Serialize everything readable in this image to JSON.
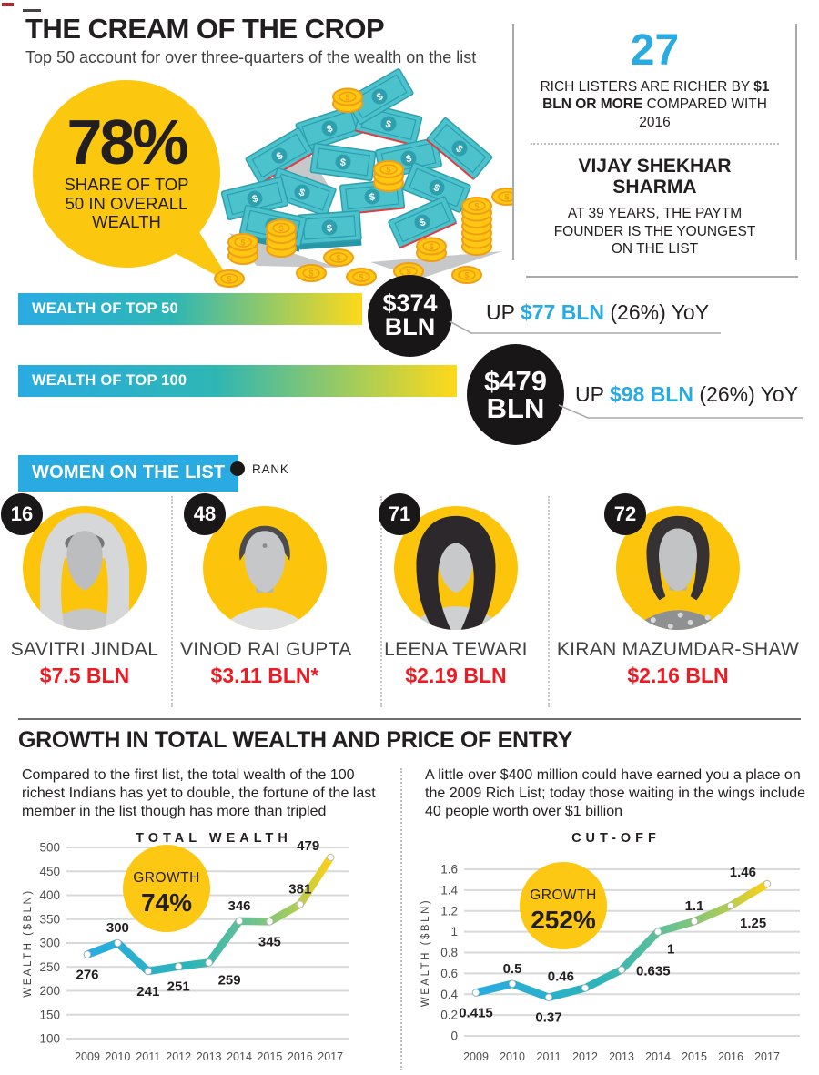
{
  "colors": {
    "accent_blue": "#29abe2",
    "accent_yellow": "#fbc70f",
    "value_red": "#ed1c24",
    "ink": "#231f20",
    "bill_teal": "#4cc2cc",
    "coin_gold": "#ffc70f"
  },
  "header": {
    "title": "THE CREAM OF THE CROP",
    "subtitle": "Top 50 account for over three-quarters of the wealth on the list"
  },
  "share_bubble": {
    "percent": "78%",
    "caption": "SHARE OF TOP 50 IN OVERALL WEALTH"
  },
  "fact_panel": {
    "number": "27",
    "line_prefix": "RICH LISTERS ARE RICHER BY ",
    "line_bold": "$1 BLN OR MORE",
    "line_suffix": " COMPARED WITH 2016",
    "person_name": "VIJAY SHEKHAR SHARMA",
    "person_desc": "AT 39 YEARS, THE PAYTM FOUNDER IS THE YOUNGEST ON THE LIST"
  },
  "wealth_bars": [
    {
      "label": "WEALTH OF TOP 50",
      "value": "$374",
      "unit": "BLN",
      "up_prefix": "UP ",
      "up_value": "$77 BLN",
      "up_suffix": " (26%) YoY"
    },
    {
      "label": "WEALTH OF TOP 100",
      "value": "$479",
      "unit": "BLN",
      "up_prefix": "UP ",
      "up_value": "$98 BLN",
      "up_suffix": " (26%) YoY"
    }
  ],
  "women_section": {
    "header": "WOMEN ON THE LIST",
    "legend_label": "RANK"
  },
  "women": [
    {
      "rank": "16",
      "name": "SAVITRI JINDAL",
      "value": "$7.5 BLN",
      "portrait": "grayscale photo"
    },
    {
      "rank": "48",
      "name": "VINOD RAI GUPTA",
      "value": "$3.11 BLN*",
      "portrait": "grayscale photo"
    },
    {
      "rank": "71",
      "name": "LEENA TEWARI",
      "value": "$2.19 BLN",
      "portrait": "placeholder silhouette"
    },
    {
      "rank": "72",
      "name": "KIRAN MAZUMDAR-SHAW",
      "value": "$2.16 BLN",
      "portrait": "grayscale photo"
    }
  ],
  "growth_section": {
    "title": "GROWTH IN TOTAL WEALTH AND PRICE OF ENTRY",
    "left_paragraph": "Compared to the first list, the total wealth of the 100 richest Indians has yet to double, the fortune of the last member in the list though has more than tripled",
    "right_paragraph": "A little over $400 million could have earned you a place on the 2009 Rich List; today those waiting in the wings include 40 people worth over $1 billion"
  },
  "chart_data": [
    {
      "type": "line",
      "title": "TOTAL WEALTH",
      "ylabel": "WEALTH ($BLN)",
      "xlabel": "",
      "categories": [
        "2009",
        "2010",
        "2011",
        "2012",
        "2013",
        "2014",
        "2015",
        "2016",
        "2017"
      ],
      "values": [
        276,
        300,
        241,
        251,
        259,
        346,
        345,
        381,
        479
      ],
      "ylim": [
        100,
        500
      ],
      "yticks": [
        "100",
        "150",
        "200",
        "250",
        "300",
        "350",
        "400",
        "450",
        "500"
      ],
      "grid": true,
      "legend": "none",
      "growth_badge": {
        "label": "GROWTH",
        "value": "74%"
      },
      "label_positions": [
        "below",
        "above",
        "below",
        "below",
        "below-right",
        "above",
        "below",
        "above",
        "above-left"
      ]
    },
    {
      "type": "line",
      "title": "CUT-OFF",
      "ylabel": "WEALTH ($BLN)",
      "xlabel": "",
      "categories": [
        "2009",
        "2010",
        "2011",
        "2012",
        "2013",
        "2014",
        "2015",
        "2016",
        "2017"
      ],
      "values": [
        0.415,
        0.5,
        0.37,
        0.46,
        0.635,
        1,
        1.1,
        1.25,
        1.46
      ],
      "ylim": [
        0,
        1.6
      ],
      "yticks": [
        "0",
        "0.2",
        "0.4",
        "0.6",
        "0.8",
        "1",
        "1.2",
        "1.4",
        "1.6"
      ],
      "grid": true,
      "legend": "none",
      "growth_badge": {
        "label": "GROWTH",
        "value": "252%"
      },
      "label_positions": [
        "below",
        "above",
        "below",
        "above-left",
        "right",
        "below-right",
        "above",
        "below-right",
        "above-left"
      ]
    }
  ]
}
